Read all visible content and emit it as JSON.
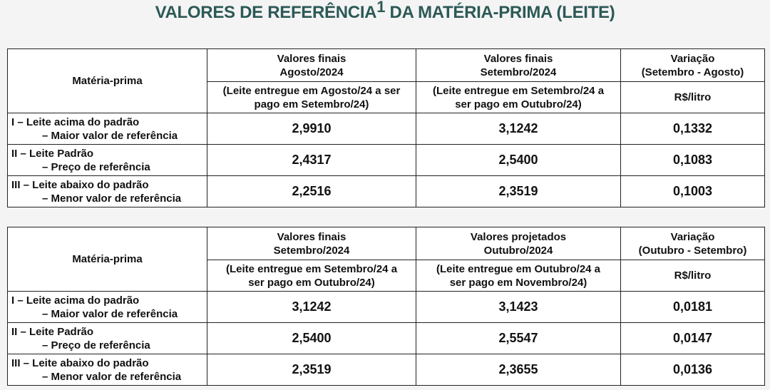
{
  "title": {
    "text": "VALORES DE REFERÊNCIA",
    "superscript": "1",
    "text_after": "DA MATÉRIA-PRIMA (LEITE)"
  },
  "tables": [
    {
      "first_header": "Matéria-prima",
      "columns": [
        {
          "title_lines": [
            "Valores finais",
            "Agosto/2024"
          ],
          "note_lines": [
            "(Leite entregue em Agosto/24 a ser",
            "pago em Setembro/24)"
          ]
        },
        {
          "title_lines": [
            "Valores finais",
            "Setembro/2024"
          ],
          "note_lines": [
            "(Leite entregue em Setembro/24 a",
            "ser pago em Outubro/24)"
          ]
        },
        {
          "title_lines": [
            "Variação",
            "(Setembro - Agosto)"
          ],
          "note_lines": [
            "R$/litro"
          ]
        }
      ],
      "rows": [
        {
          "label_lines": [
            "I – Leite acima do padrão",
            "– Maior valor de referência"
          ],
          "values": [
            "2,9910",
            "3,1242",
            "0,1332"
          ]
        },
        {
          "label_lines": [
            "II – Leite Padrão",
            "– Preço de referência"
          ],
          "values": [
            "2,4317",
            "2,5400",
            "0,1083"
          ]
        },
        {
          "label_lines": [
            "III – Leite abaixo do padrão",
            "– Menor valor de referência"
          ],
          "values": [
            "2,2516",
            "2,3519",
            "0,1003"
          ]
        }
      ]
    },
    {
      "first_header": "Matéria-prima",
      "columns": [
        {
          "title_lines": [
            "Valores finais",
            "Setembro/2024"
          ],
          "note_lines": [
            "(Leite entregue em Setembro/24 a",
            "ser pago em Outubro/24)"
          ]
        },
        {
          "title_lines": [
            "Valores projetados",
            "Outubro/2024"
          ],
          "note_lines": [
            "(Leite entregue em Outubro/24 a",
            "ser pago em Novembro/24)"
          ]
        },
        {
          "title_lines": [
            "Variação",
            "(Outubro - Setembro)"
          ],
          "note_lines": [
            "R$/litro"
          ]
        }
      ],
      "rows": [
        {
          "label_lines": [
            "I – Leite acima do padrão",
            "– Maior valor de referência"
          ],
          "values": [
            "3,1242",
            "3,1423",
            "0,0181"
          ]
        },
        {
          "label_lines": [
            "II – Leite Padrão",
            "– Preço de referência"
          ],
          "values": [
            "2,5400",
            "2,5547",
            "0,0147"
          ]
        },
        {
          "label_lines": [
            "III – Leite abaixo do padrão",
            "– Menor valor de referência"
          ],
          "values": [
            "2,3519",
            "2,3655",
            "0,0136"
          ]
        }
      ]
    }
  ]
}
